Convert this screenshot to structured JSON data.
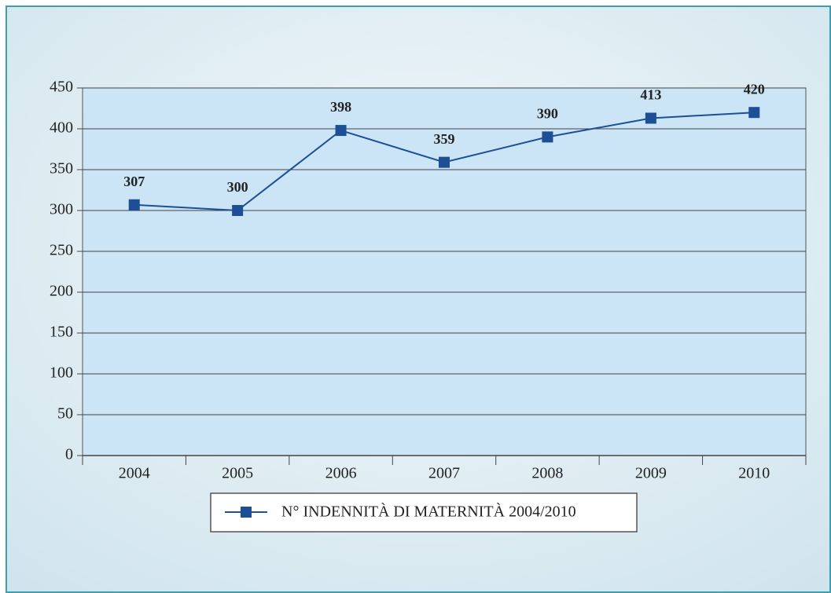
{
  "chart_data": {
    "type": "line",
    "categories": [
      "2004",
      "2005",
      "2006",
      "2007",
      "2008",
      "2009",
      "2010"
    ],
    "series": [
      {
        "name": "N° INDENNITÀ DI MATERNITÀ 2004/2010",
        "color": "#1c4f96",
        "values": [
          307,
          300,
          398,
          359,
          390,
          413,
          420
        ]
      }
    ],
    "ylim": [
      0,
      450
    ],
    "yticks": [
      0,
      50,
      100,
      150,
      200,
      250,
      300,
      350,
      400,
      450
    ],
    "grid": true,
    "legend": "bottom"
  }
}
